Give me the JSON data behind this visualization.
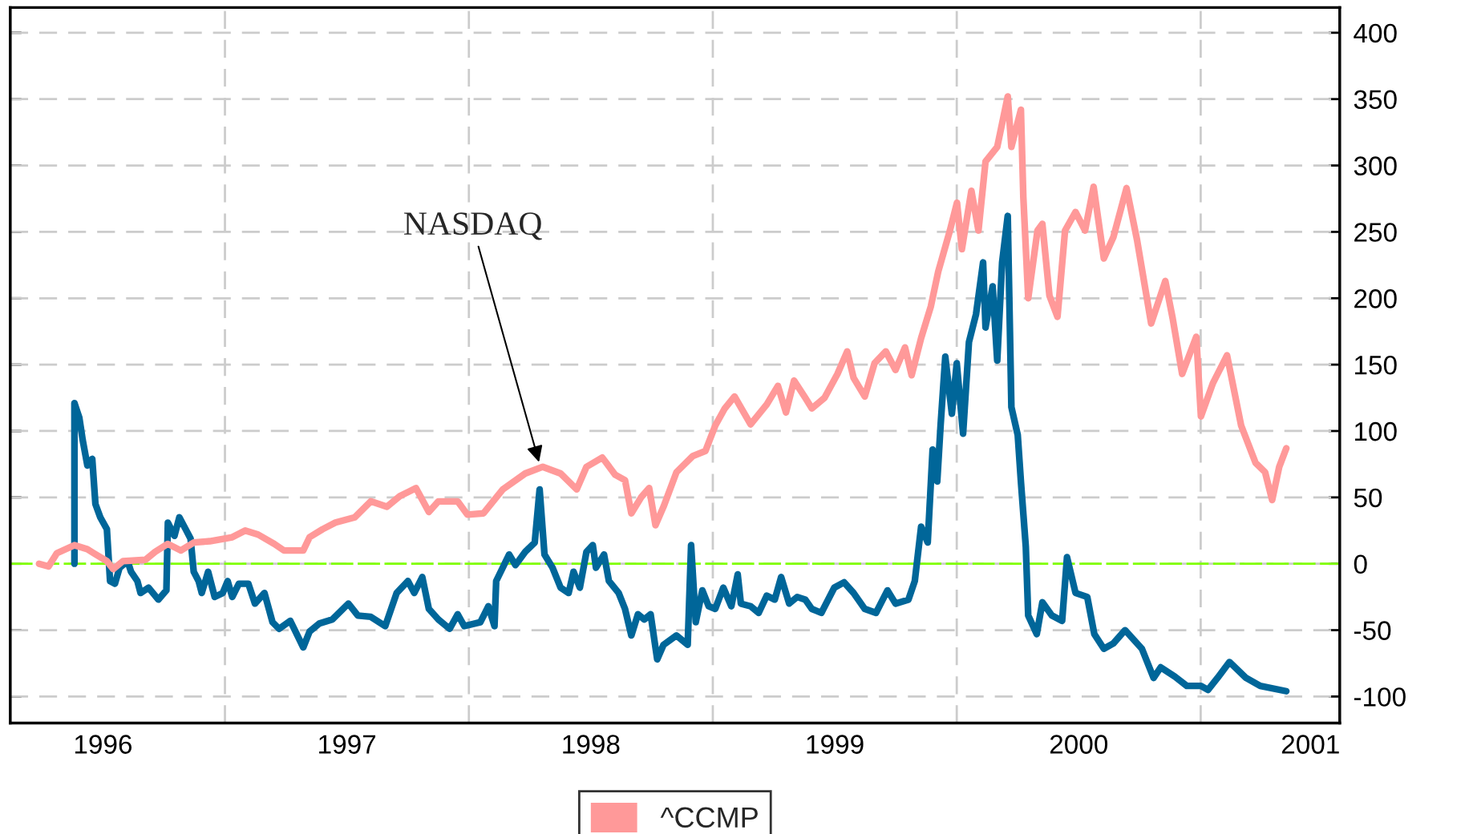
{
  "chart_data": {
    "type": "line",
    "xlim": [
      1996.12,
      2001.57
    ],
    "ylim": [
      -120,
      419
    ],
    "xticks": [
      {
        "value": 1996.5,
        "label": "1996"
      },
      {
        "value": 1997,
        "label": null
      },
      {
        "value": 1997.5,
        "label": "1997"
      },
      {
        "value": 1998,
        "label": null
      },
      {
        "value": 1998.5,
        "label": "1998"
      },
      {
        "value": 1999,
        "label": null
      },
      {
        "value": 1999.5,
        "label": "1999"
      },
      {
        "value": 2000,
        "label": null
      },
      {
        "value": 2000.5,
        "label": "2000"
      },
      {
        "value": 2001,
        "label": null
      },
      {
        "value": 2001.45,
        "label": "2001"
      }
    ],
    "yticks": [
      -100,
      -50,
      0,
      50,
      100,
      150,
      200,
      250,
      300,
      350,
      400
    ],
    "grid": true,
    "legend": "bottom",
    "line_style": "solid",
    "marker": "none",
    "ref_lines": [
      {
        "axis": "y",
        "value": 0,
        "color": "#80ff00",
        "line_style": "dashed"
      }
    ],
    "annotations": [
      {
        "text": "NASDAQ",
        "x": 1998.29,
        "y": 75
      }
    ],
    "series": [
      {
        "color": "#006699",
        "x": [
          1996.383,
          1996.383,
          1996.403,
          1996.417,
          1996.436,
          1996.456,
          1996.469,
          1996.489,
          1996.516,
          1996.529,
          1996.549,
          1996.568,
          1996.601,
          1996.615,
          1996.641,
          1996.654,
          1996.687,
          1996.727,
          1996.76,
          1996.766,
          1996.793,
          1996.813,
          1996.839,
          1996.859,
          1996.872,
          1996.892,
          1996.905,
          1996.931,
          1996.958,
          1996.991,
          1997.011,
          1997.03,
          1997.057,
          1997.096,
          1997.123,
          1997.162,
          1997.195,
          1997.222,
          1997.268,
          1997.321,
          1997.347,
          1997.387,
          1997.44,
          1997.506,
          1997.545,
          1997.598,
          1997.657,
          1997.704,
          1997.75,
          1997.776,
          1997.809,
          1997.836,
          1997.875,
          1997.921,
          1997.954,
          1997.981,
          1998.047,
          1998.08,
          1998.105,
          1998.112,
          1998.165,
          1998.191,
          1998.231,
          1998.27,
          1998.29,
          1998.31,
          1998.343,
          1998.376,
          1998.409,
          1998.429,
          1998.455,
          1998.482,
          1998.508,
          1998.521,
          1998.554,
          1998.574,
          1998.614,
          1998.64,
          1998.666,
          1998.693,
          1998.719,
          1998.745,
          1998.772,
          1998.798,
          1998.851,
          1998.897,
          1998.911,
          1998.93,
          1998.957,
          1998.983,
          1999.01,
          1999.043,
          1999.076,
          1999.102,
          1999.115,
          1999.155,
          1999.188,
          1999.221,
          1999.254,
          1999.28,
          1999.313,
          1999.346,
          1999.379,
          1999.406,
          1999.445,
          1999.498,
          1999.538,
          1999.577,
          1999.623,
          1999.669,
          1999.716,
          1999.749,
          1999.802,
          1999.828,
          1999.854,
          1999.881,
          1999.901,
          1999.92,
          1999.934,
          1999.953,
          1999.98,
          2000.0,
          2000.026,
          2000.05,
          2000.079,
          2000.108,
          2000.118,
          2000.147,
          2000.166,
          2000.186,
          2000.209,
          2000.224,
          2000.25,
          2000.263,
          2000.283,
          2000.293,
          2000.328,
          2000.351,
          2000.39,
          2000.432,
          2000.452,
          2000.487,
          2000.535,
          2000.564,
          2000.603,
          2000.642,
          2000.69,
          2000.759,
          2000.807,
          2000.836,
          2000.894,
          2000.943,
          2001.001,
          2001.03,
          2001.069,
          2001.118,
          2001.186,
          2001.244,
          2001.351
        ],
        "values": [
          0,
          121,
          110,
          93,
          74,
          79,
          45,
          35,
          26,
          -13,
          -15,
          -3,
          2,
          -6,
          -13,
          -22,
          -18,
          -27,
          -20,
          31,
          21,
          35,
          26,
          19,
          -6,
          -13,
          -22,
          -6,
          -25,
          -22,
          -13,
          -25,
          -15,
          -15,
          -30,
          -22,
          -44,
          -49,
          -43,
          -63,
          -51,
          -45,
          -42,
          -30,
          -39,
          -40,
          -47,
          -22,
          -13,
          -22,
          -10,
          -34,
          -42,
          -49,
          -38,
          -47,
          -44,
          -32,
          -47,
          -13,
          7,
          -1,
          9,
          16,
          56,
          7,
          -3,
          -18,
          -22,
          -6,
          -18,
          9,
          14,
          -3,
          7,
          -13,
          -22,
          -34,
          -54,
          -38,
          -42,
          -38,
          -72,
          -61,
          -54,
          -61,
          14,
          -44,
          -20,
          -32,
          -34,
          -18,
          -32,
          -8,
          -30,
          -32,
          -37,
          -24,
          -27,
          -10,
          -30,
          -25,
          -27,
          -34,
          -37,
          -18,
          -14,
          -22,
          -34,
          -37,
          -20,
          -30,
          -27,
          -13,
          28,
          16,
          86,
          62,
          105,
          156,
          113,
          151,
          98,
          167,
          188,
          227,
          178,
          209,
          153,
          227,
          262,
          118,
          97,
          62,
          13,
          -39,
          -53,
          -29,
          -39,
          -43,
          5,
          -22,
          -25,
          -53,
          -64,
          -60,
          -50,
          -64,
          -86,
          -78,
          -85,
          -92,
          -92,
          -95,
          -86,
          -74,
          -86,
          -92,
          -96
        ]
      },
      {
        "name": "^CCMP",
        "color": "#ff9999",
        "x": [
          1996.238,
          1996.277,
          1996.311,
          1996.383,
          1996.436,
          1996.462,
          1996.516,
          1996.542,
          1996.582,
          1996.674,
          1996.714,
          1996.766,
          1996.819,
          1996.872,
          1996.938,
          1997.03,
          1997.083,
          1997.136,
          1997.202,
          1997.242,
          1997.321,
          1997.347,
          1997.4,
          1997.453,
          1997.532,
          1997.598,
          1997.664,
          1997.717,
          1997.783,
          1997.836,
          1997.875,
          1997.954,
          1997.994,
          1998.06,
          1998.139,
          1998.231,
          1998.303,
          1998.376,
          1998.442,
          1998.482,
          1998.547,
          1998.6,
          1998.64,
          1998.666,
          1998.706,
          1998.739,
          1998.765,
          1998.798,
          1998.851,
          1998.917,
          1998.97,
          1999.01,
          1999.049,
          1999.089,
          1999.155,
          1999.221,
          1999.267,
          1999.3,
          1999.333,
          1999.379,
          1999.406,
          1999.458,
          1999.511,
          1999.551,
          1999.577,
          1999.623,
          1999.663,
          1999.709,
          1999.749,
          1999.788,
          1999.815,
          1999.854,
          1999.894,
          1999.924,
          1999.972,
          2000.001,
          2000.021,
          2000.06,
          2000.089,
          2000.118,
          2000.166,
          2000.209,
          2000.224,
          2000.263,
          2000.273,
          2000.293,
          2000.331,
          2000.351,
          2000.38,
          2000.413,
          2000.444,
          2000.487,
          2000.526,
          2000.561,
          2000.603,
          2000.642,
          2000.696,
          2000.739,
          2000.797,
          2000.855,
          2000.885,
          2000.924,
          2000.982,
          2001.001,
          2001.05,
          2001.108,
          2001.166,
          2001.225,
          2001.264,
          2001.293,
          2001.322,
          2001.351
        ],
        "values": [
          0,
          -2,
          8,
          14,
          11,
          8,
          2,
          -4,
          2,
          3,
          9,
          15,
          10,
          16,
          17,
          20,
          25,
          22,
          15,
          10,
          10,
          20,
          26,
          31,
          35,
          47,
          43,
          51,
          57,
          39,
          47,
          47,
          37,
          38,
          56,
          68,
          73,
          68,
          56,
          73,
          80,
          67,
          63,
          38,
          50,
          57,
          29,
          43,
          69,
          81,
          85,
          104,
          117,
          126,
          105,
          120,
          134,
          114,
          138,
          125,
          117,
          125,
          143,
          160,
          140,
          126,
          151,
          160,
          146,
          163,
          142,
          170,
          194,
          220,
          251,
          272,
          237,
          281,
          251,
          303,
          314,
          352,
          314,
          342,
          276,
          200,
          251,
          256,
          202,
          186,
          251,
          265,
          251,
          284,
          230,
          246,
          283,
          244,
          181,
          213,
          185,
          143,
          171,
          111,
          136,
          157,
          104,
          76,
          69,
          48,
          73,
          87
        ]
      }
    ]
  }
}
